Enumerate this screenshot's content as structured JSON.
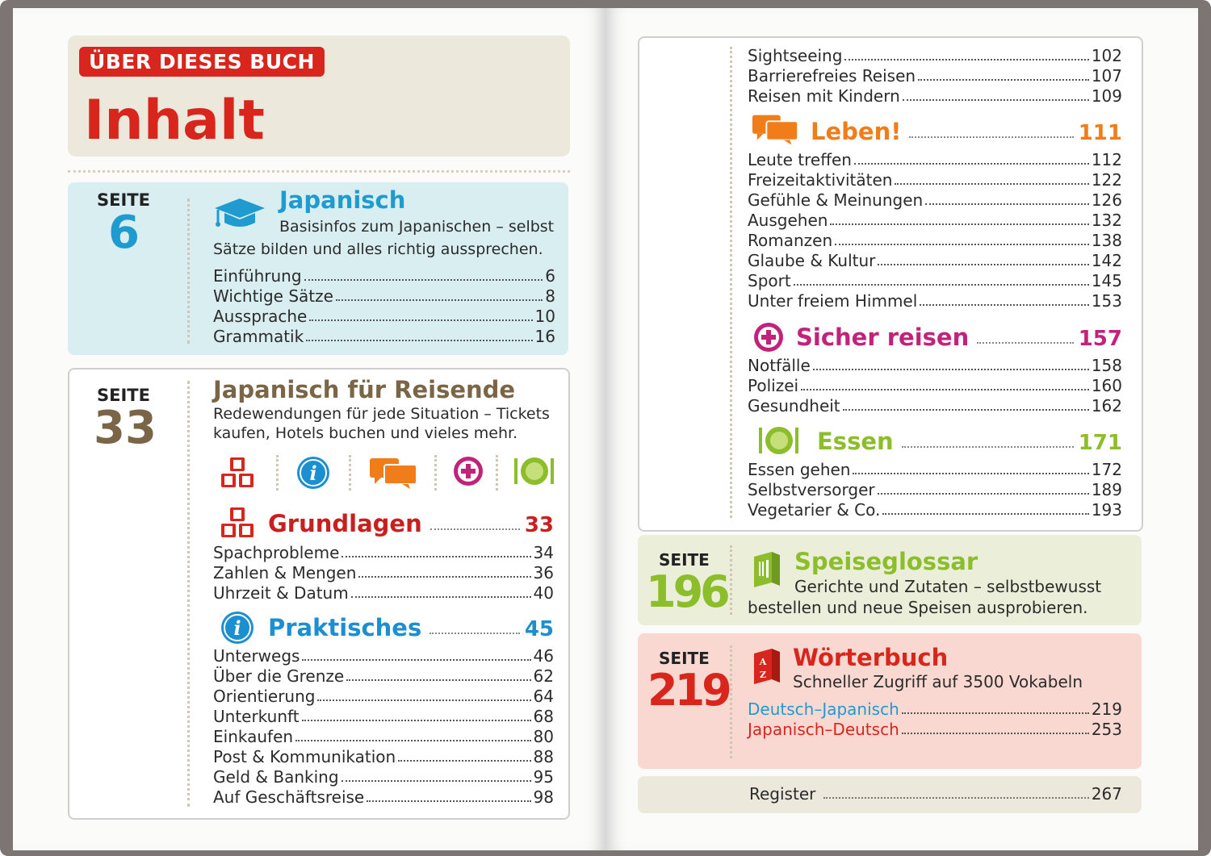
{
  "header": {
    "label": "ÜBER DIESES BUCH",
    "title": "Inhalt"
  },
  "colors": {
    "red": "#d8261d",
    "teal": "#1f9bcf",
    "brown": "#7a6547",
    "orange": "#f07d1a",
    "magenta": "#c2237a",
    "green": "#8cbd2b",
    "darkred": "#c8201f",
    "blue": "#1b8fd0"
  },
  "japanisch": {
    "seite_label": "SEITE",
    "seite_num": "6",
    "title": "Japanisch",
    "desc1": "Basisinfos zum Japanischen – selbst",
    "desc2": "Sätze bilden und alles richtig aussprechen.",
    "items": [
      {
        "label": "Einführung",
        "page": "6"
      },
      {
        "label": "Wichtige Sätze",
        "page": "8"
      },
      {
        "label": "Aussprache",
        "page": "10"
      },
      {
        "label": "Grammatik",
        "page": "16"
      }
    ]
  },
  "reisende": {
    "seite_label": "SEITE",
    "seite_num": "33",
    "title": "Japanisch für Reisende",
    "desc1": "Redewendungen für jede Situation – Tickets",
    "desc2": "kaufen, Hotels buchen und vieles mehr.",
    "icons": [
      "abc-blocks-icon",
      "info-icon",
      "speech-bubbles-icon",
      "plus-cross-icon",
      "plate-cutlery-icon"
    ],
    "grundlagen": {
      "title": "Grundlagen",
      "page": "33",
      "items": [
        {
          "label": "Spachprobleme",
          "page": "34"
        },
        {
          "label": "Zahlen & Mengen",
          "page": "36"
        },
        {
          "label": "Uhrzeit & Datum",
          "page": "40"
        }
      ]
    },
    "praktisches": {
      "title": "Praktisches",
      "page": "45",
      "items": [
        {
          "label": "Unterwegs",
          "page": "46"
        },
        {
          "label": "Über die Grenze",
          "page": "62"
        },
        {
          "label": "Orientierung",
          "page": "64"
        },
        {
          "label": "Unterkunft",
          "page": "68"
        },
        {
          "label": "Einkaufen",
          "page": "80"
        },
        {
          "label": "Post & Kommunikation",
          "page": "88"
        },
        {
          "label": "Geld & Banking",
          "page": "95"
        },
        {
          "label": "Auf Geschäftsreise",
          "page": "98"
        }
      ]
    }
  },
  "right": {
    "top_items": [
      {
        "label": "Sightseeing",
        "page": "102"
      },
      {
        "label": "Barrierefreies Reisen",
        "page": "107"
      },
      {
        "label": "Reisen mit Kindern",
        "page": "109"
      }
    ],
    "leben": {
      "title": "Leben!",
      "page": "111",
      "items": [
        {
          "label": "Leute treffen",
          "page": "112"
        },
        {
          "label": "Freizeitaktivitäten",
          "page": "122"
        },
        {
          "label": "Gefühle & Meinungen",
          "page": "126"
        },
        {
          "label": "Ausgehen",
          "page": "132"
        },
        {
          "label": "Romanzen",
          "page": "138"
        },
        {
          "label": "Glaube & Kultur",
          "page": "142"
        },
        {
          "label": "Sport",
          "page": "145"
        },
        {
          "label": "Unter freiem Himmel",
          "page": "153"
        }
      ]
    },
    "sicher": {
      "title": "Sicher reisen",
      "page": "157",
      "items": [
        {
          "label": "Notfälle",
          "page": "158"
        },
        {
          "label": "Polizei",
          "page": "160"
        },
        {
          "label": "Gesundheit",
          "page": "162"
        }
      ]
    },
    "essen": {
      "title": "Essen",
      "page": "171",
      "items": [
        {
          "label": "Essen gehen",
          "page": "172"
        },
        {
          "label": "Selbstversorger",
          "page": "189"
        },
        {
          "label": "Vegetarier & Co.",
          "page": "193"
        }
      ]
    },
    "speiseglossar": {
      "seite_label": "SEITE",
      "seite_num": "196",
      "title": "Speiseglossar",
      "desc1": "Gerichte und Zutaten – selbstbewusst",
      "desc2": "bestellen und neue Speisen ausprobieren."
    },
    "woerterbuch": {
      "seite_label": "SEITE",
      "seite_num": "219",
      "title": "Wörterbuch",
      "desc1": "Schneller Zugriff auf 3500 Vokabeln",
      "items": [
        {
          "label": "Deutsch–Japanisch",
          "page": "219"
        },
        {
          "label": "Japanisch–Deutsch",
          "page": "253"
        }
      ]
    },
    "register": {
      "label": "Register",
      "page": "267"
    }
  }
}
